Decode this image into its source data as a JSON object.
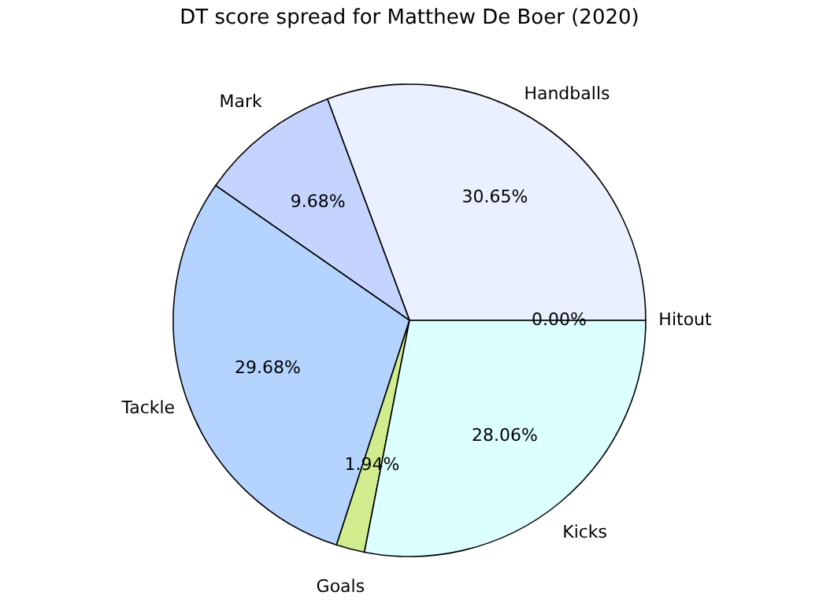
{
  "chart_data": {
    "type": "pie",
    "title": "DT score spread for Matthew De Boer (2020)",
    "categories": [
      "Hitout",
      "Handballs",
      "Mark",
      "Tackle",
      "Goals",
      "Kicks"
    ],
    "values": [
      0.0,
      30.65,
      9.68,
      29.68,
      1.94,
      28.06
    ],
    "colors": [
      "#e0ffe0",
      "#eaf0ff",
      "#c4d4ff",
      "#b4d4ff",
      "#d0ec8c",
      "#dcffff"
    ],
    "value_labels": [
      "0.00%",
      "30.65%",
      "9.68%",
      "29.68%",
      "1.94%",
      "28.06%"
    ],
    "legend": false
  }
}
